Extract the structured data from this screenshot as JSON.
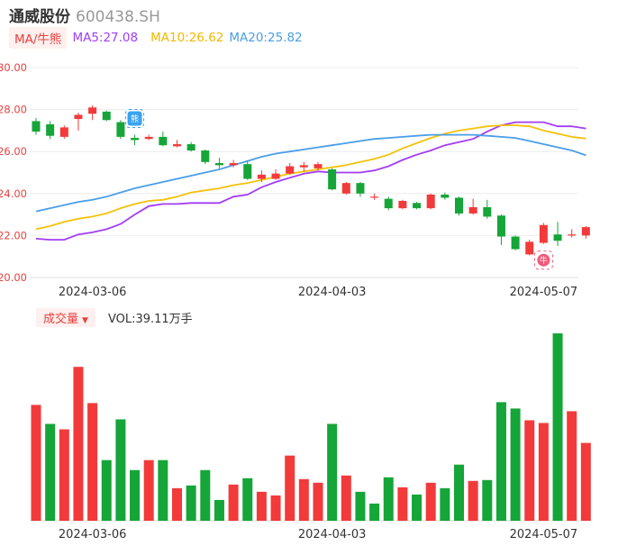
{
  "header": {
    "name": "通威股份",
    "code": "600438.SH"
  },
  "indicators": {
    "ma_button": "MA/牛熊",
    "ma5": "MA5:27.08",
    "ma10": "MA10:26.62",
    "ma20": "MA20:25.82"
  },
  "volume_panel": {
    "button": "成交量",
    "caret": "▼",
    "value": "VOL:39.11万手"
  },
  "colors": {
    "up": "#f23a3a",
    "down": "#15a538",
    "ma5": "#a23cf5",
    "ma10": "#f3c20c",
    "ma20": "#4a9ee8",
    "axis_label": "#e94040"
  },
  "markers": {
    "bear_icon": "熊",
    "bull_icon": "牛"
  },
  "chart_data": [
    {
      "type": "candlestick",
      "y_ticks": [
        "30.00",
        "28.00",
        "26.00",
        "24.00",
        "22.00",
        "20.00"
      ],
      "ylim": [
        20,
        30
      ],
      "x_tick_labels": [
        {
          "index": 4,
          "label": "2024-03-06"
        },
        {
          "index": 21,
          "label": "2024-04-03"
        },
        {
          "index": 36,
          "label": "2024-05-07"
        }
      ],
      "grid": true,
      "candles": [
        {
          "o": 27.45,
          "c": 26.95,
          "h": 27.6,
          "l": 26.8
        },
        {
          "o": 27.3,
          "c": 26.75,
          "h": 27.45,
          "l": 26.6
        },
        {
          "o": 26.7,
          "c": 27.15,
          "h": 27.25,
          "l": 26.6
        },
        {
          "o": 27.55,
          "c": 27.75,
          "h": 27.85,
          "l": 27.0
        },
        {
          "o": 27.8,
          "c": 28.1,
          "h": 28.2,
          "l": 27.5
        },
        {
          "o": 27.9,
          "c": 27.5,
          "h": 27.95,
          "l": 27.45
        },
        {
          "o": 27.4,
          "c": 26.7,
          "h": 27.5,
          "l": 26.6
        },
        {
          "o": 26.65,
          "c": 26.55,
          "h": 26.8,
          "l": 26.3
        },
        {
          "o": 26.6,
          "c": 26.7,
          "h": 26.8,
          "l": 26.55
        },
        {
          "o": 26.7,
          "c": 26.3,
          "h": 26.95,
          "l": 26.25
        },
        {
          "o": 26.25,
          "c": 26.35,
          "h": 26.55,
          "l": 26.2
        },
        {
          "o": 26.35,
          "c": 26.05,
          "h": 26.45,
          "l": 26.0
        },
        {
          "o": 26.05,
          "c": 25.5,
          "h": 26.1,
          "l": 25.4
        },
        {
          "o": 25.45,
          "c": 25.35,
          "h": 25.7,
          "l": 25.2
        },
        {
          "o": 25.35,
          "c": 25.45,
          "h": 25.6,
          "l": 25.25
        },
        {
          "o": 25.4,
          "c": 24.7,
          "h": 25.55,
          "l": 24.65
        },
        {
          "o": 24.7,
          "c": 24.9,
          "h": 25.1,
          "l": 24.55
        },
        {
          "o": 24.7,
          "c": 24.95,
          "h": 25.15,
          "l": 24.65
        },
        {
          "o": 24.95,
          "c": 25.3,
          "h": 25.45,
          "l": 24.9
        },
        {
          "o": 25.25,
          "c": 25.35,
          "h": 25.5,
          "l": 25.05
        },
        {
          "o": 25.2,
          "c": 25.4,
          "h": 25.5,
          "l": 25.1
        },
        {
          "o": 25.15,
          "c": 24.2,
          "h": 25.2,
          "l": 24.15
        },
        {
          "o": 24.0,
          "c": 24.5,
          "h": 24.55,
          "l": 23.95
        },
        {
          "o": 24.5,
          "c": 24.0,
          "h": 24.55,
          "l": 23.85
        },
        {
          "o": 23.85,
          "c": 23.85,
          "h": 24.0,
          "l": 23.7
        },
        {
          "o": 23.75,
          "c": 23.3,
          "h": 23.85,
          "l": 23.2
        },
        {
          "o": 23.3,
          "c": 23.65,
          "h": 23.7,
          "l": 23.25
        },
        {
          "o": 23.55,
          "c": 23.3,
          "h": 23.6,
          "l": 23.25
        },
        {
          "o": 23.3,
          "c": 23.95,
          "h": 24.0,
          "l": 23.25
        },
        {
          "o": 23.95,
          "c": 23.8,
          "h": 24.05,
          "l": 23.7
        },
        {
          "o": 23.8,
          "c": 23.05,
          "h": 23.85,
          "l": 22.95
        },
        {
          "o": 23.05,
          "c": 23.35,
          "h": 23.75,
          "l": 23.0
        },
        {
          "o": 23.35,
          "c": 22.9,
          "h": 23.7,
          "l": 22.8
        },
        {
          "o": 22.95,
          "c": 21.95,
          "h": 23.0,
          "l": 21.55
        },
        {
          "o": 21.95,
          "c": 21.35,
          "h": 22.0,
          "l": 21.3
        },
        {
          "o": 21.1,
          "c": 21.7,
          "h": 21.8,
          "l": 21.05
        },
        {
          "o": 21.65,
          "c": 22.5,
          "h": 22.6,
          "l": 21.6
        },
        {
          "o": 22.05,
          "c": 21.75,
          "h": 22.65,
          "l": 21.5
        },
        {
          "o": 22.0,
          "c": 22.05,
          "h": 22.3,
          "l": 21.9
        },
        {
          "o": 22.0,
          "c": 22.4,
          "h": 22.45,
          "l": 21.85
        }
      ],
      "ma_series": [
        {
          "name": "MA5",
          "values": [
            21.85,
            21.8,
            21.8,
            22.05,
            22.15,
            22.3,
            22.55,
            23.0,
            23.4,
            23.5,
            23.5,
            23.55,
            23.55,
            23.55,
            23.85,
            23.95,
            24.3,
            24.55,
            24.75,
            24.95,
            25.05,
            25.0,
            25.0,
            25.0,
            25.1,
            25.3,
            25.6,
            25.85,
            26.05,
            26.3,
            26.45,
            26.6,
            26.95,
            27.25,
            27.4,
            27.4,
            27.4,
            27.2,
            27.2,
            27.1
          ]
        },
        {
          "name": "MA10",
          "values": [
            22.3,
            22.45,
            22.65,
            22.8,
            22.9,
            23.05,
            23.3,
            23.5,
            23.65,
            23.7,
            23.85,
            24.05,
            24.15,
            24.25,
            24.4,
            24.5,
            24.65,
            24.8,
            24.95,
            25.05,
            25.15,
            25.25,
            25.35,
            25.5,
            25.65,
            25.85,
            26.15,
            26.4,
            26.65,
            26.85,
            27.0,
            27.1,
            27.2,
            27.25,
            27.25,
            27.2,
            27.0,
            26.85,
            26.7,
            26.62
          ]
        },
        {
          "name": "MA20",
          "values": [
            23.15,
            23.3,
            23.45,
            23.6,
            23.7,
            23.85,
            24.05,
            24.25,
            24.4,
            24.55,
            24.7,
            24.85,
            25.0,
            25.15,
            25.35,
            25.55,
            25.75,
            25.9,
            26.0,
            26.1,
            26.2,
            26.3,
            26.4,
            26.5,
            26.6,
            26.65,
            26.7,
            26.75,
            26.8,
            26.8,
            26.8,
            26.8,
            26.75,
            26.7,
            26.65,
            26.5,
            26.35,
            26.2,
            26.05,
            25.82
          ]
        }
      ]
    },
    {
      "type": "bar",
      "title": "成交量",
      "values": [
        128,
        107,
        101,
        170,
        130,
        67,
        112,
        56,
        67,
        67,
        36,
        39,
        56,
        23,
        40,
        47,
        32,
        28,
        72,
        46,
        42,
        107,
        50,
        32,
        19,
        48,
        37,
        29,
        42,
        36,
        62,
        44,
        45,
        131,
        124,
        111,
        108,
        207,
        121,
        86
      ],
      "directions": [
        "up",
        "down",
        "up",
        "up",
        "up",
        "down",
        "down",
        "down",
        "up",
        "down",
        "up",
        "down",
        "down",
        "down",
        "up",
        "down",
        "up",
        "up",
        "up",
        "up",
        "up",
        "down",
        "up",
        "down",
        "down",
        "down",
        "up",
        "down",
        "up",
        "down",
        "down",
        "up",
        "down",
        "down",
        "down",
        "up",
        "up",
        "down",
        "up",
        "up"
      ]
    }
  ]
}
